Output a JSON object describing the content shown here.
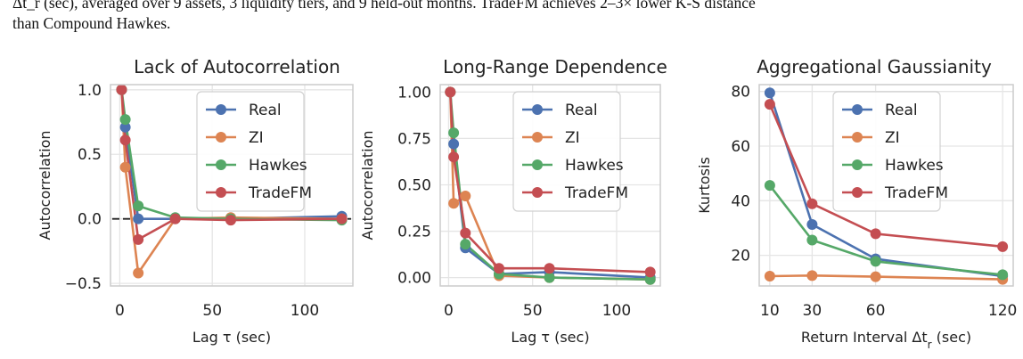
{
  "caption": {
    "line1": "Δt_r (sec), averaged over 9 assets, 3 liquidity tiers, and 9 held-out months. TradeFM achieves 2–3× lower K-S distance",
    "line2": "than Compound Hawkes."
  },
  "colors": {
    "Real": "#4c72b0",
    "ZI": "#dd8452",
    "Hawkes": "#55a868",
    "TradeFM": "#c44e52",
    "grid": "#e5e5e5",
    "frame": "#cccccc"
  },
  "chart_data": [
    {
      "type": "line",
      "title": "Lack of Autocorrelation",
      "xlabel": "Lag τ (sec)",
      "ylabel": "Autocorrelation",
      "xlim": [
        -5,
        126
      ],
      "ylim": [
        -0.52,
        1.04
      ],
      "xticks": [
        0,
        50,
        100
      ],
      "xtick_labels": [
        "0",
        "50",
        "100"
      ],
      "yticks": [
        1.0,
        0.5,
        0.0,
        -0.5
      ],
      "ytick_labels": [
        "1.0",
        "0.5",
        "0.0",
        "−0.5"
      ],
      "legend": "upper right",
      "grid": true,
      "zero_line": true,
      "series": [
        {
          "name": "Real",
          "x": [
            1,
            3,
            10,
            30,
            60,
            120
          ],
          "y": [
            1.0,
            0.71,
            0.0,
            0.0,
            0.0,
            0.02
          ]
        },
        {
          "name": "ZI",
          "x": [
            1,
            3,
            10,
            30,
            60,
            120
          ],
          "y": [
            1.0,
            0.4,
            -0.42,
            0.0,
            0.01,
            0.0
          ]
        },
        {
          "name": "Hawkes",
          "x": [
            1,
            3,
            10,
            30,
            60,
            120
          ],
          "y": [
            1.0,
            0.77,
            0.1,
            0.01,
            0.0,
            -0.01
          ]
        },
        {
          "name": "TradeFM",
          "x": [
            1,
            3,
            10,
            30,
            60,
            120
          ],
          "y": [
            1.0,
            0.61,
            -0.16,
            0.0,
            -0.01,
            0.0
          ]
        }
      ]
    },
    {
      "type": "line",
      "title": "Long-Range Dependence",
      "xlabel": "Lag τ (sec)",
      "ylabel": "Autocorrelation",
      "xlim": [
        -5,
        126
      ],
      "ylim": [
        -0.045,
        1.04
      ],
      "xticks": [
        0,
        50,
        100
      ],
      "xtick_labels": [
        "0",
        "50",
        "100"
      ],
      "yticks": [
        1.0,
        0.75,
        0.5,
        0.25,
        0.0
      ],
      "ytick_labels": [
        "1.00",
        "0.75",
        "0.50",
        "0.25",
        "0.00"
      ],
      "legend": "upper right",
      "grid": true,
      "zero_line": false,
      "series": [
        {
          "name": "Real",
          "x": [
            1,
            3,
            10,
            30,
            60,
            120
          ],
          "y": [
            1.0,
            0.72,
            0.16,
            0.02,
            0.03,
            0.0
          ]
        },
        {
          "name": "ZI",
          "x": [
            1,
            3,
            10,
            30,
            60,
            120
          ],
          "y": [
            1.0,
            0.4,
            0.44,
            0.01,
            0.0,
            -0.01
          ]
        },
        {
          "name": "Hawkes",
          "x": [
            1,
            3,
            10,
            30,
            60,
            120
          ],
          "y": [
            1.0,
            0.78,
            0.18,
            0.02,
            0.0,
            -0.01
          ]
        },
        {
          "name": "TradeFM",
          "x": [
            1,
            3,
            10,
            30,
            60,
            120
          ],
          "y": [
            1.0,
            0.65,
            0.24,
            0.05,
            0.05,
            0.03
          ]
        }
      ]
    },
    {
      "type": "line",
      "title": "Aggregational Gaussianity",
      "xlabel": "Return Interval Δt_r (sec)",
      "ylabel": "Kurtosis",
      "xlim": [
        5,
        125
      ],
      "ylim": [
        8.8,
        82.5
      ],
      "xticks": [
        10,
        30,
        60,
        120
      ],
      "xtick_labels": [
        "10",
        "30",
        "60",
        "120"
      ],
      "yticks": [
        80,
        60,
        40,
        20
      ],
      "ytick_labels": [
        "80",
        "60",
        "40",
        "20"
      ],
      "legend": "upper right",
      "grid": true,
      "zero_line": false,
      "series": [
        {
          "name": "Real",
          "x": [
            10,
            30,
            60,
            120
          ],
          "y": [
            79.5,
            31.3,
            18.7,
            12.4
          ]
        },
        {
          "name": "ZI",
          "x": [
            10,
            30,
            60,
            120
          ],
          "y": [
            12.4,
            12.6,
            12.2,
            11.2
          ]
        },
        {
          "name": "Hawkes",
          "x": [
            10,
            30,
            60,
            120
          ],
          "y": [
            45.6,
            25.6,
            17.8,
            12.9
          ]
        },
        {
          "name": "TradeFM",
          "x": [
            10,
            30,
            60,
            120
          ],
          "y": [
            75.3,
            38.9,
            27.9,
            23.2
          ]
        }
      ]
    }
  ]
}
